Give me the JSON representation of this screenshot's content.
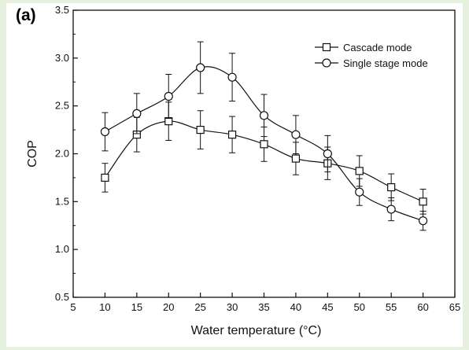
{
  "figure": {
    "panel_label": "(a)"
  },
  "chart_data": {
    "type": "line",
    "title": "",
    "xlabel": "Water temperature (°C)",
    "ylabel": "COP",
    "xlim": [
      5,
      65
    ],
    "ylim": [
      0.5,
      3.5
    ],
    "xticks": [
      5,
      10,
      15,
      20,
      25,
      30,
      35,
      40,
      45,
      50,
      55,
      60,
      65
    ],
    "yticks": [
      0.5,
      1.0,
      1.5,
      2.0,
      2.5,
      3.0,
      3.5
    ],
    "ytick_labels": [
      "0.5",
      "1.0",
      "1.5",
      "2.0",
      "2.5",
      "3.0",
      "3.5"
    ],
    "grid": false,
    "legend_position": "top-right",
    "x": [
      10,
      15,
      20,
      25,
      30,
      35,
      40,
      45,
      50,
      55,
      60
    ],
    "series": [
      {
        "name": "Cascade mode",
        "marker": "square",
        "values": [
          1.75,
          2.2,
          2.34,
          2.25,
          2.2,
          2.1,
          1.95,
          1.9,
          1.82,
          1.65,
          1.5
        ],
        "errors": [
          0.15,
          0.18,
          0.2,
          0.2,
          0.19,
          0.18,
          0.17,
          0.17,
          0.16,
          0.14,
          0.13
        ]
      },
      {
        "name": "Single stage mode",
        "marker": "circle",
        "values": [
          2.23,
          2.42,
          2.6,
          2.9,
          2.8,
          2.4,
          2.2,
          2.0,
          1.6,
          1.42,
          1.3
        ],
        "errors": [
          0.2,
          0.21,
          0.23,
          0.27,
          0.25,
          0.22,
          0.2,
          0.19,
          0.14,
          0.12,
          0.1
        ]
      }
    ]
  }
}
